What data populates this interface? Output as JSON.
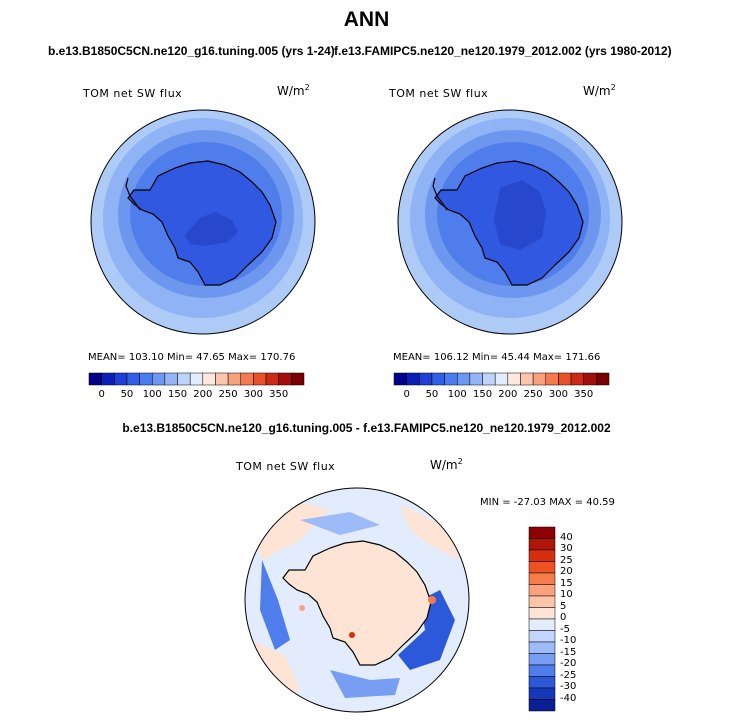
{
  "figure": {
    "title": "ANN",
    "subtitle_left": "b.e13.B1850C5CN.ne120_g16.tuning.005 (yrs 1-24)",
    "subtitle_right": "f.e13.FAMIPC5.ne120_ne120.1979_2012.002 (yrs 1980-2012)",
    "diff_title": "b.e13.B1850C5CN.ne120_g16.tuning.005 - f.e13.FAMIPC5.ne120_ne120.1979_2012.002"
  },
  "panels": {
    "left": {
      "variable": "TOM net SW flux",
      "units_base": "W/m",
      "units_exp": "2",
      "stats": "MEAN= 103.10   Min=  47.65   Max= 170.76"
    },
    "right": {
      "variable": "TOM net SW flux",
      "units_base": "W/m",
      "units_exp": "2",
      "stats": "MEAN= 106.12   Min=  45.44   Max= 171.66"
    },
    "diff": {
      "variable": "TOM net SW flux",
      "units_base": "W/m",
      "units_exp": "2",
      "stats": "MIN = -27.03  MAX =  40.59"
    }
  },
  "colorbars": {
    "horizontal": {
      "labels": [
        "0",
        "50",
        "100",
        "150",
        "200",
        "250",
        "300",
        "350"
      ],
      "colors": [
        "#00008b",
        "#0a1fb5",
        "#1f3fd6",
        "#2f5fe8",
        "#4a7cf0",
        "#6c98f4",
        "#94b6f7",
        "#bed3fa",
        "#e3ecfd",
        "#fde8de",
        "#fcc6ae",
        "#f9a07d",
        "#f47a4f",
        "#e8502b",
        "#cc2a14",
        "#a10f08",
        "#780000"
      ]
    },
    "vertical": {
      "labels": [
        "40",
        "30",
        "25",
        "20",
        "15",
        "10",
        "5",
        "0",
        "-5",
        "-10",
        "-15",
        "-20",
        "-25",
        "-30",
        "-40"
      ],
      "colors": [
        "#8b0000",
        "#b01608",
        "#d4300f",
        "#ef5222",
        "#f77c4c",
        "#fba27d",
        "#fdc5a8",
        "#fde4d4",
        "#e3ecfd",
        "#c2d6fb",
        "#9dbbf8",
        "#779ef3",
        "#4f7deb",
        "#2c59d9",
        "#1538b8",
        "#0a1f93"
      ]
    }
  },
  "colors": {
    "ocean_far": "#aecbf8",
    "ocean_mid": "#7ea6f1",
    "ocean_near": "#4f7deb",
    "antarctica": "#3158e0",
    "antarctica_interior": "#2748cc",
    "diff_land": "#fde4d4",
    "diff_bg": "#e3ecfd"
  }
}
